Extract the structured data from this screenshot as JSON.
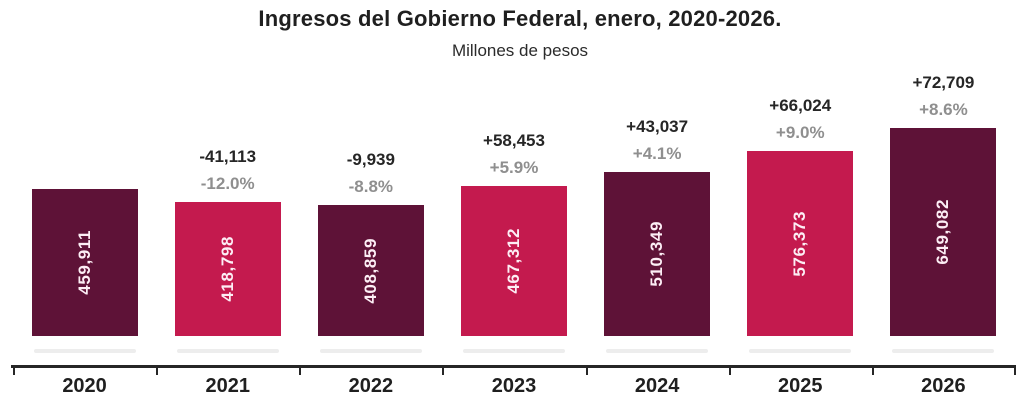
{
  "chart_data": {
    "type": "bar",
    "title": "Ingresos del Gobierno Federal, enero, 2020-2026.",
    "subtitle": "Millones de pesos",
    "categories": [
      "2020",
      "2021",
      "2022",
      "2023",
      "2024",
      "2025",
      "2026"
    ],
    "values": [
      459911,
      418798,
      408859,
      467312,
      510349,
      576373,
      649082
    ],
    "value_labels": [
      "459,911",
      "418,798",
      "408,859",
      "467,312",
      "510,349",
      "576,373",
      "649,082"
    ],
    "change_labels": [
      "",
      "-41,113",
      "-9,939",
      "+58,453",
      "+43,037",
      "+66,024",
      "+72,709"
    ],
    "pct_labels": [
      "",
      "-12.0%",
      "-8.8%",
      "+5.9%",
      "+4.1%",
      "+9.0%",
      "+8.6%"
    ],
    "bar_colors": [
      "#5e1237",
      "#c41a4e",
      "#5e1237",
      "#c41a4e",
      "#5e1237",
      "#c41a4e",
      "#5e1237"
    ],
    "palette": {
      "dark_maroon": "#5e1237",
      "crimson": "#c41a4e",
      "bar_value_text": "#fdeef5",
      "change_text": "#262626",
      "pct_text": "#8f8f8f",
      "axis": "#262626",
      "year_text": "#1f1f1f",
      "shadow": "#ededed",
      "background": "#ffffff"
    },
    "ylim": [
      0,
      649082
    ],
    "grid": false,
    "legend": false,
    "value_label_orientation": "vertical-bottom-to-top",
    "xlabel": "",
    "ylabel": ""
  }
}
